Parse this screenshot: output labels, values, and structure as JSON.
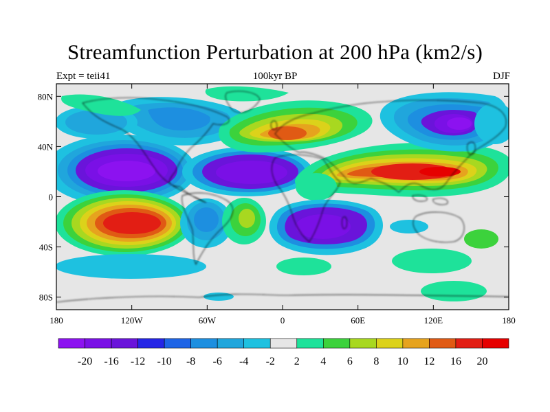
{
  "title": "Streamfunction Perturbation at 200 hPa (km2/s)",
  "left_label": "Expt = teii41",
  "center_label": "100kyr BP",
  "right_label": "DJF",
  "lat_ticks": [
    {
      "value": 80,
      "label": "80N"
    },
    {
      "value": 40,
      "label": "40N"
    },
    {
      "value": 0,
      "label": "0"
    },
    {
      "value": -40,
      "label": "40S"
    },
    {
      "value": -80,
      "label": "80S"
    }
  ],
  "lon_ticks": [
    {
      "value": -180,
      "label": "180"
    },
    {
      "value": -120,
      "label": "120W"
    },
    {
      "value": -60,
      "label": "60W"
    },
    {
      "value": 0,
      "label": "0"
    },
    {
      "value": 60,
      "label": "60E"
    },
    {
      "value": 120,
      "label": "120E"
    },
    {
      "value": 180,
      "label": "180"
    }
  ],
  "colorbar": {
    "colors": [
      "#8c12f0",
      "#7a10e6",
      "#6a14da",
      "#2525e6",
      "#1e64e6",
      "#1d8fe0",
      "#20a6dc",
      "#1ec1e0",
      "#e6e6e6",
      "#1ee29a",
      "#3cd23c",
      "#a8d820",
      "#dcd21a",
      "#e6a31e",
      "#e05a14",
      "#e21e14",
      "#e60000"
    ],
    "labels": [
      "-20",
      "-16",
      "-12",
      "-10",
      "-8",
      "-6",
      "-4",
      "-2",
      "2",
      "4",
      "6",
      "8",
      "10",
      "12",
      "16",
      "20"
    ]
  },
  "map_background": "#e6e6e6"
}
